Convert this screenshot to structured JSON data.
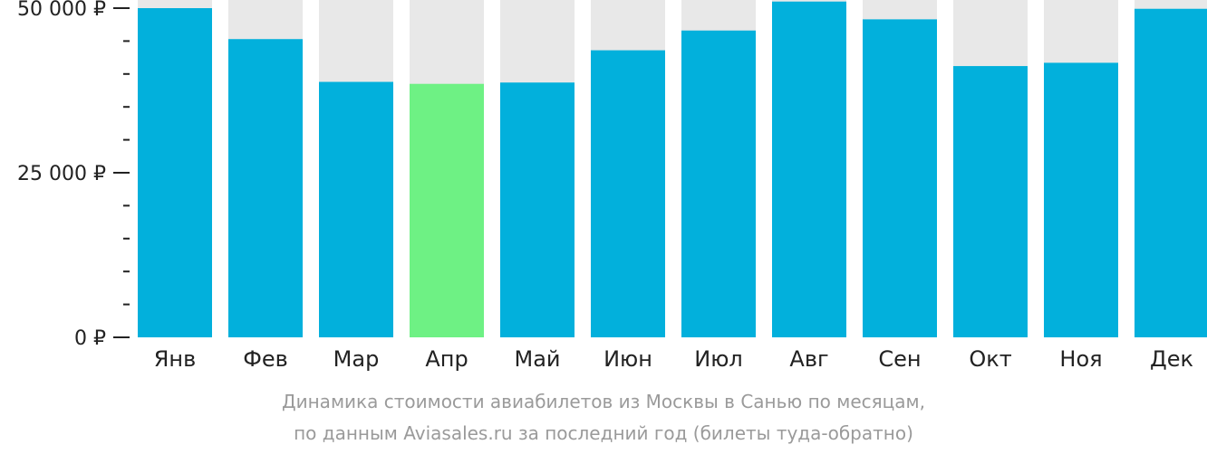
{
  "chart_data": {
    "type": "bar",
    "categories": [
      "Янв",
      "Фев",
      "Мар",
      "Апр",
      "Май",
      "Июн",
      "Июл",
      "Авг",
      "Сен",
      "Окт",
      "Ноя",
      "Дек"
    ],
    "values": [
      50000,
      45300,
      38800,
      38500,
      38700,
      43600,
      46600,
      51000,
      48300,
      41200,
      41700,
      49900
    ],
    "highlight_index": 3,
    "ylim": [
      0,
      51000
    ],
    "y_ticks": [
      {
        "value": 50000,
        "label": "50 000 ₽"
      },
      {
        "value": 25000,
        "label": "25 000 ₽"
      },
      {
        "value": 0,
        "label": "0 ₽"
      }
    ],
    "y_minor_step": 5000,
    "colors": {
      "bar": "#02b0dc",
      "highlight": "#6ef184",
      "background_bar": "#e8e8e8",
      "axis": "#222222"
    },
    "caption_lines": [
      "Динамика стоимости авиабилетов из Москвы в Санью по месяцам,",
      "по данным Aviasales.ru за последний год (билеты туда-обратно)"
    ]
  }
}
